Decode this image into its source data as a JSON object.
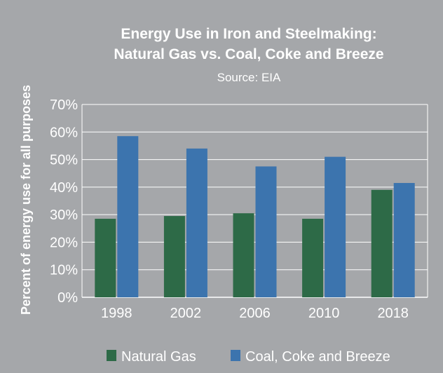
{
  "chart_data": {
    "type": "bar",
    "title": "Energy Use in Iron and Steelmaking:",
    "title_line2": "Natural Gas vs. Coal, Coke and Breeze",
    "subtitle": "Source: EIA",
    "xlabel": "",
    "ylabel": "Percent of energy use for all purposes",
    "categories": [
      "1998",
      "2002",
      "2006",
      "2010",
      "2018"
    ],
    "ylim": [
      0,
      70
    ],
    "yticks": [
      0,
      10,
      20,
      30,
      40,
      50,
      60,
      70
    ],
    "ytick_labels": [
      "0%",
      "10%",
      "20%",
      "30%",
      "40%",
      "50%",
      "60%",
      "70%"
    ],
    "grid": true,
    "legend_position": "bottom",
    "series": [
      {
        "name": "Natural Gas",
        "color": "#2d6a47",
        "values": [
          28.5,
          29.5,
          30.5,
          28.5,
          39
        ]
      },
      {
        "name": "Coal, Coke and Breeze",
        "color": "#3c74ae",
        "values": [
          58.5,
          54,
          47.5,
          51,
          41.5
        ]
      }
    ]
  },
  "colors": {
    "background": "#a5a7aa",
    "plot_background": "#a5a7aa",
    "gridline": "#ffffff",
    "text": "#ffffff"
  }
}
